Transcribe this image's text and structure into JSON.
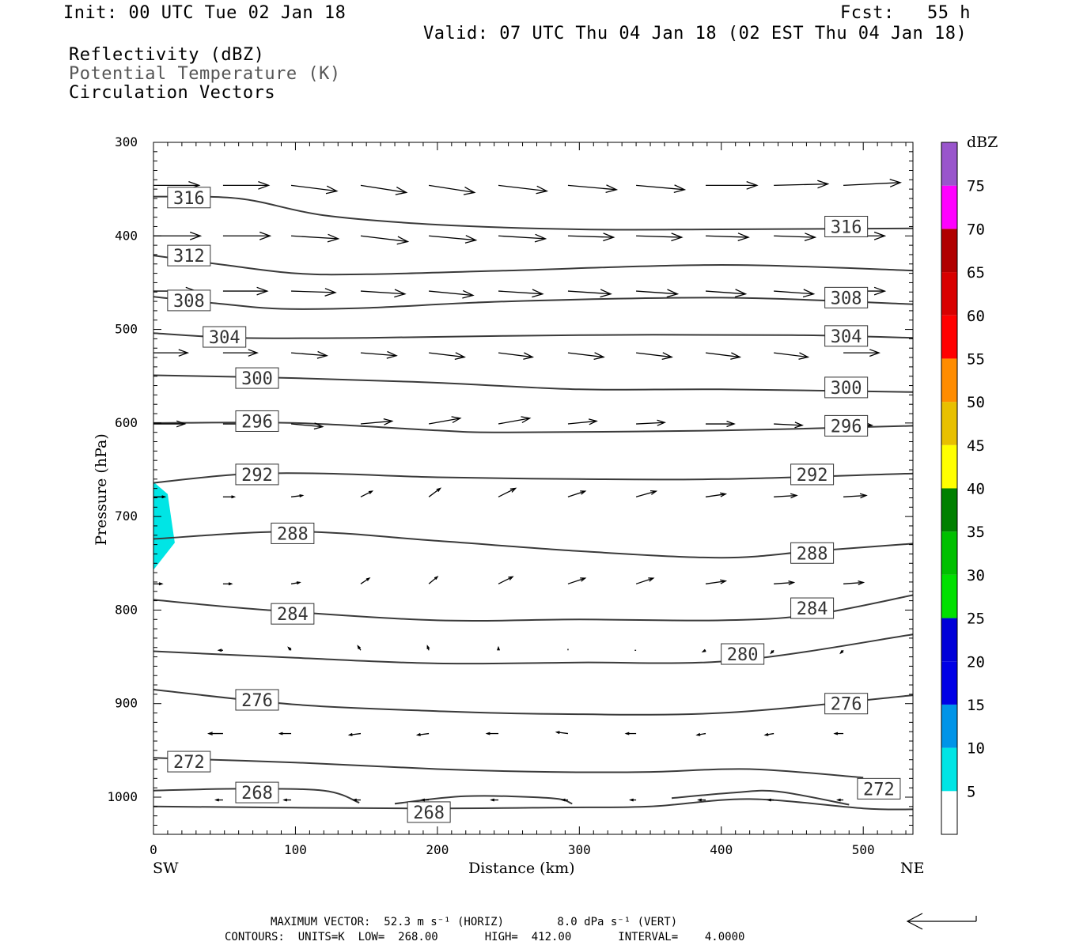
{
  "header": {
    "init": "Init: 00 UTC Tue 02 Jan 18",
    "fcst": "Fcst:   55 h",
    "valid": "Valid: 07 UTC Thu 04 Jan 18 (02 EST Thu 04 Jan 18)",
    "fields": [
      "Reflectivity (dBZ)",
      "Potential Temperature (K)",
      "Circulation Vectors"
    ]
  },
  "footer": {
    "max_vector": "MAXIMUM VECTOR:  52.3 m s⁻¹ (HORIZ)        8.0 dPa s⁻¹ (VERT)",
    "contours": "CONTOURS:  UNITS=K  LOW=  268.00       HIGH=  412.00       INTERVAL=    4.0000"
  },
  "colors": {
    "contour": "#3a3a3a",
    "reflectivity_5": "#00e5e5"
  },
  "chart_data": {
    "type": "cross-section contour",
    "xlabel": "Distance (km)",
    "ylabel": "Pressure (hPa)",
    "xlim": [
      0,
      535
    ],
    "ylim": [
      1040,
      300
    ],
    "x_ticks": [
      0,
      100,
      200,
      300,
      400,
      500
    ],
    "y_ticks": [
      300,
      400,
      500,
      600,
      700,
      800,
      900,
      1000
    ],
    "left_end_label": "SW",
    "right_end_label": "NE",
    "colorbar": {
      "unit": "dBZ",
      "levels": [
        5,
        10,
        15,
        20,
        25,
        30,
        35,
        40,
        45,
        50,
        55,
        60,
        65,
        70,
        75
      ],
      "colors": [
        "#00e5e5",
        "#0094e8",
        "#0000e6",
        "#0000d8",
        "#00e000",
        "#00c000",
        "#008000",
        "#ffff00",
        "#e8c000",
        "#ff8c00",
        "#ff0000",
        "#d80000",
        "#b00000",
        "#ff00ff",
        "#9955cc"
      ]
    },
    "reflectivity_area": {
      "level": 5,
      "points": [
        [
          0,
          663
        ],
        [
          10,
          676
        ],
        [
          15,
          728
        ],
        [
          0,
          757
        ]
      ]
    },
    "theta_contours": [
      {
        "value": 316,
        "points": [
          [
            0,
            358
          ],
          [
            60,
            360
          ],
          [
            120,
            378
          ],
          [
            200,
            388
          ],
          [
            300,
            393
          ],
          [
            400,
            393
          ],
          [
            535,
            392
          ]
        ],
        "labels": [
          [
            25,
            359
          ],
          [
            488,
            390
          ]
        ]
      },
      {
        "value": 312,
        "points": [
          [
            0,
            421
          ],
          [
            50,
            431
          ],
          [
            100,
            440
          ],
          [
            150,
            441
          ],
          [
            250,
            437
          ],
          [
            400,
            431
          ],
          [
            535,
            437
          ]
        ],
        "labels": [
          [
            25,
            421
          ]
        ]
      },
      {
        "value": 308,
        "points": [
          [
            0,
            465
          ],
          [
            50,
            473
          ],
          [
            90,
            478
          ],
          [
            150,
            477
          ],
          [
            250,
            470
          ],
          [
            400,
            466
          ],
          [
            535,
            473
          ]
        ],
        "labels": [
          [
            25,
            469
          ],
          [
            488,
            466
          ]
        ]
      },
      {
        "value": 304,
        "points": [
          [
            0,
            504
          ],
          [
            60,
            509
          ],
          [
            150,
            509
          ],
          [
            300,
            506
          ],
          [
            450,
            506
          ],
          [
            535,
            509
          ]
        ],
        "labels": [
          [
            50,
            508
          ],
          [
            488,
            507
          ]
        ]
      },
      {
        "value": 300,
        "points": [
          [
            0,
            549
          ],
          [
            100,
            552
          ],
          [
            200,
            557
          ],
          [
            300,
            564
          ],
          [
            400,
            564
          ],
          [
            535,
            567
          ]
        ],
        "labels": [
          [
            73,
            552
          ],
          [
            488,
            562
          ]
        ]
      },
      {
        "value": 296,
        "points": [
          [
            0,
            600
          ],
          [
            100,
            600
          ],
          [
            200,
            608
          ],
          [
            250,
            610
          ],
          [
            400,
            608
          ],
          [
            535,
            603
          ]
        ],
        "labels": [
          [
            73,
            598
          ],
          [
            488,
            603
          ]
        ]
      },
      {
        "value": 292,
        "points": [
          [
            0,
            664
          ],
          [
            60,
            655
          ],
          [
            120,
            654
          ],
          [
            200,
            658
          ],
          [
            300,
            660
          ],
          [
            400,
            660
          ],
          [
            535,
            654
          ]
        ],
        "labels": [
          [
            73,
            655
          ],
          [
            464,
            655
          ]
        ]
      },
      {
        "value": 288,
        "points": [
          [
            0,
            724
          ],
          [
            100,
            716
          ],
          [
            200,
            726
          ],
          [
            300,
            737
          ],
          [
            400,
            744
          ],
          [
            464,
            737
          ],
          [
            535,
            729
          ]
        ],
        "labels": [
          [
            98,
            718
          ],
          [
            464,
            739
          ]
        ]
      },
      {
        "value": 284,
        "points": [
          [
            0,
            789
          ],
          [
            80,
            800
          ],
          [
            200,
            811
          ],
          [
            300,
            810
          ],
          [
            400,
            811
          ],
          [
            464,
            805
          ],
          [
            535,
            784
          ]
        ],
        "labels": [
          [
            98,
            804
          ],
          [
            464,
            798
          ]
        ]
      },
      {
        "value": 280,
        "points": [
          [
            0,
            844
          ],
          [
            100,
            851
          ],
          [
            200,
            857
          ],
          [
            300,
            856
          ],
          [
            410,
            854
          ],
          [
            535,
            826
          ]
        ],
        "labels": [
          [
            415,
            847
          ]
        ]
      },
      {
        "value": 276,
        "points": [
          [
            0,
            885
          ],
          [
            100,
            901
          ],
          [
            200,
            908
          ],
          [
            280,
            911
          ],
          [
            400,
            910
          ],
          [
            535,
            891
          ]
        ],
        "labels": [
          [
            73,
            896
          ],
          [
            488,
            900
          ]
        ]
      },
      {
        "value": 272,
        "points": [
          [
            0,
            958
          ],
          [
            100,
            963
          ],
          [
            200,
            970
          ],
          [
            280,
            973
          ],
          [
            350,
            973
          ],
          [
            420,
            970
          ],
          [
            500,
            979
          ]
        ],
        "labels": [
          [
            25,
            962
          ],
          [
            511,
            991
          ]
        ]
      },
      {
        "value": 268,
        "points": [
          [
            0,
            993
          ],
          [
            60,
            991
          ],
          [
            120,
            993
          ],
          [
            145,
            1006
          ]
        ],
        "labels": [
          [
            73,
            995
          ]
        ]
      },
      {
        "value": 268,
        "points": [
          [
            170,
            1007
          ],
          [
            220,
            999
          ],
          [
            280,
            1001
          ],
          [
            295,
            1007
          ]
        ],
        "labels": [
          [
            194,
            1016
          ]
        ]
      },
      {
        "value": 268,
        "points": [
          [
            365,
            1001
          ],
          [
            410,
            995
          ],
          [
            440,
            994
          ],
          [
            490,
            1008
          ]
        ],
        "labels": []
      },
      {
        "value": 268,
        "points": [
          [
            0,
            1010
          ],
          [
            180,
            1012
          ],
          [
            290,
            1011
          ],
          [
            350,
            1010
          ],
          [
            420,
            1002
          ],
          [
            500,
            1012
          ],
          [
            535,
            1013
          ]
        ],
        "labels": []
      }
    ],
    "circulation_vectors": {
      "x_positions": [
        0,
        49,
        97,
        146,
        194,
        243,
        292,
        340,
        389,
        437,
        486
      ],
      "rows": [
        {
          "p": 346,
          "u": [
            32,
            32,
            32,
            32,
            32,
            34,
            34,
            34,
            36,
            38,
            40
          ],
          "v": [
            0,
            0,
            -4,
            -5,
            -5,
            -4,
            -3,
            -3,
            0,
            1,
            2
          ]
        },
        {
          "p": 400,
          "u": [
            33,
            33,
            33,
            33,
            33,
            33,
            32,
            32,
            30,
            29,
            29
          ],
          "v": [
            0,
            0,
            -2,
            -4,
            -3,
            -2,
            -1,
            -1,
            -1,
            -1,
            0
          ]
        },
        {
          "p": 459,
          "u": [
            30,
            31,
            31,
            31,
            31,
            31,
            30,
            29,
            28,
            28,
            29
          ],
          "v": [
            0,
            0,
            -1,
            -2,
            -3,
            -2,
            -2,
            -2,
            -2,
            -2,
            0
          ]
        },
        {
          "p": 525,
          "u": [
            24,
            24,
            25,
            25,
            25,
            24,
            25,
            25,
            24,
            24,
            25
          ],
          "v": [
            0,
            0,
            -2,
            -2,
            -3,
            -3,
            -3,
            -3,
            -3,
            -3,
            0
          ]
        },
        {
          "p": 601,
          "u": [
            22,
            22,
            22,
            22,
            22,
            22,
            20,
            20,
            20,
            20,
            20
          ],
          "v": [
            0,
            0,
            -2,
            2,
            4,
            4,
            2,
            1,
            0,
            -1,
            -1
          ]
        },
        {
          "p": 679,
          "u": [
            8,
            8,
            8,
            8,
            8,
            12,
            12,
            14,
            14,
            16,
            16
          ],
          "v": [
            0,
            0,
            1,
            4,
            6,
            6,
            4,
            4,
            2,
            1,
            1
          ]
        },
        {
          "p": 772,
          "u": [
            6,
            6,
            6,
            6,
            6,
            10,
            12,
            12,
            14,
            14,
            14
          ],
          "v": [
            0,
            0,
            1,
            4,
            5,
            5,
            4,
            4,
            2,
            1,
            1
          ]
        },
        {
          "p": 843,
          "u": [
            -4,
            -3,
            -2,
            -2,
            -1,
            0,
            0,
            -1,
            -2,
            -2,
            -2
          ],
          "v": [
            0,
            0,
            2,
            3,
            3,
            2,
            1,
            0,
            -1,
            -2,
            -2
          ]
        },
        {
          "p": 932,
          "u": [
            -10,
            -10,
            -8,
            -8,
            -8,
            -8,
            -8,
            -7,
            -6,
            -6,
            -6
          ],
          "v": [
            0,
            0,
            0,
            -1,
            -1,
            0,
            1,
            0,
            -1,
            -1,
            0
          ]
        },
        {
          "p": 1003,
          "u": [
            -6,
            -5,
            -5,
            -5,
            -5,
            -5,
            -4,
            -4,
            -5,
            -4,
            -4
          ],
          "v": [
            0,
            0,
            0,
            0,
            0,
            0,
            0,
            0,
            0,
            0,
            0
          ]
        }
      ]
    }
  }
}
